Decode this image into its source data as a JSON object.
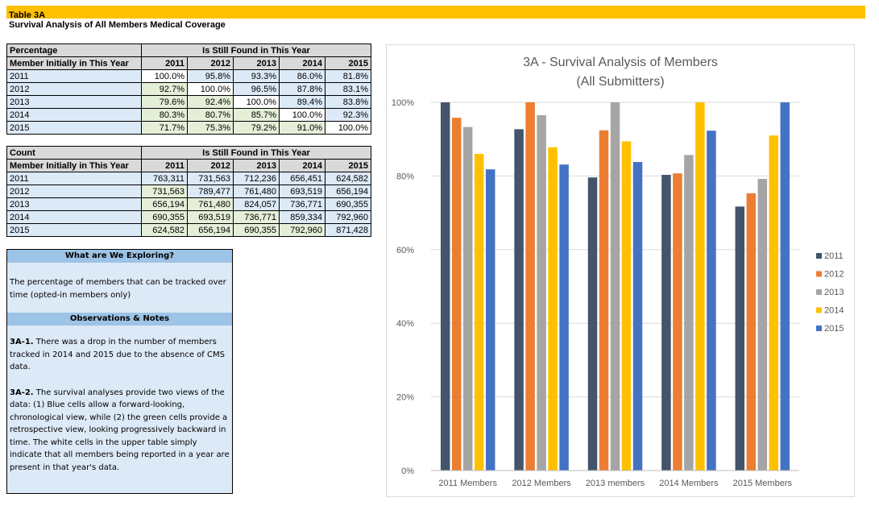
{
  "header": {
    "table_label": "Table 3A",
    "subtitle": "Survival Analysis of All Members Medical Coverage"
  },
  "years": [
    "2011",
    "2012",
    "2013",
    "2014",
    "2015"
  ],
  "pct_table": {
    "corner1": "Percentage",
    "corner2": "Member Initially in This Year",
    "group_header": "Is Still Found in This Year",
    "rows": [
      {
        "label": "2011",
        "cells": [
          "100.0%",
          "95.8%",
          "93.3%",
          "86.0%",
          "81.8%"
        ]
      },
      {
        "label": "2012",
        "cells": [
          "92.7%",
          "100.0%",
          "96.5%",
          "87.8%",
          "83.1%"
        ]
      },
      {
        "label": "2013",
        "cells": [
          "79.6%",
          "92.4%",
          "100.0%",
          "89.4%",
          "83.8%"
        ]
      },
      {
        "label": "2014",
        "cells": [
          "80.3%",
          "80.7%",
          "85.7%",
          "100.0%",
          "92.3%"
        ]
      },
      {
        "label": "2015",
        "cells": [
          "71.7%",
          "75.3%",
          "79.2%",
          "91.0%",
          "100.0%"
        ]
      }
    ]
  },
  "count_table": {
    "corner1": "Count",
    "corner2": "Member Initially in This Year",
    "group_header": "Is Still Found in This Year",
    "rows": [
      {
        "label": "2011",
        "cells": [
          "763,311",
          "731,563",
          "712,236",
          "656,451",
          "624,582"
        ]
      },
      {
        "label": "2012",
        "cells": [
          "731,563",
          "789,477",
          "761,480",
          "693,519",
          "656,194"
        ]
      },
      {
        "label": "2013",
        "cells": [
          "656,194",
          "761,480",
          "824,057",
          "736,771",
          "690,355"
        ]
      },
      {
        "label": "2014",
        "cells": [
          "690,355",
          "693,519",
          "736,771",
          "859,334",
          "792,960"
        ]
      },
      {
        "label": "2015",
        "cells": [
          "624,582",
          "656,194",
          "690,355",
          "792,960",
          "871,428"
        ]
      }
    ]
  },
  "notes": {
    "exploring_header": "What are We Exploring?",
    "exploring_text": "The percentage of members that can be tracked over time (opted-in members only)",
    "observations_header": "Observations & Notes",
    "note1_id": "3A-1.",
    "note1_text": " There was a drop in the number of members tracked in 2014 and 2015 due to the absence of CMS data.",
    "note2_id": "3A-2.",
    "note2_text": " The survival analyses provide two views of the data: (1) Blue cells allow a forward-looking, chronological view, while (2) the green cells provide a retrospective view, looking progressively backward in time. The white cells in the upper table simply indicate that all members being reported in a year are present in that year's data."
  },
  "colors": {
    "banner": "#ffc000",
    "blue_cell": "#dce9f6",
    "green_cell": "#e5efd8",
    "header_cell": "#d9d9d9",
    "notes_header": "#9dc3e6"
  },
  "chart_data": {
    "type": "bar",
    "title": "3A - Survival Analysis of Members",
    "subtitle": "(All Submitters)",
    "categories": [
      "2011 Members",
      "2012 Members",
      "2013 members",
      "2014 Members",
      "2015 Members"
    ],
    "series": [
      {
        "name": "2011",
        "color": "#44546a",
        "values": [
          100.0,
          92.7,
          79.6,
          80.3,
          71.7
        ]
      },
      {
        "name": "2012",
        "color": "#ed7d31",
        "values": [
          95.8,
          100.0,
          92.4,
          80.7,
          75.3
        ]
      },
      {
        "name": "2013",
        "color": "#a5a5a5",
        "values": [
          93.3,
          96.5,
          100.0,
          85.7,
          79.2
        ]
      },
      {
        "name": "2014",
        "color": "#ffc000",
        "values": [
          86.0,
          87.8,
          89.4,
          100.0,
          91.0
        ]
      },
      {
        "name": "2015",
        "color": "#4472c4",
        "values": [
          81.8,
          83.1,
          83.8,
          92.3,
          100.0
        ]
      }
    ],
    "ylim": [
      0,
      100
    ],
    "yticks": [
      "0%",
      "20%",
      "40%",
      "60%",
      "80%",
      "100%"
    ],
    "grid": true,
    "legend": "right"
  }
}
